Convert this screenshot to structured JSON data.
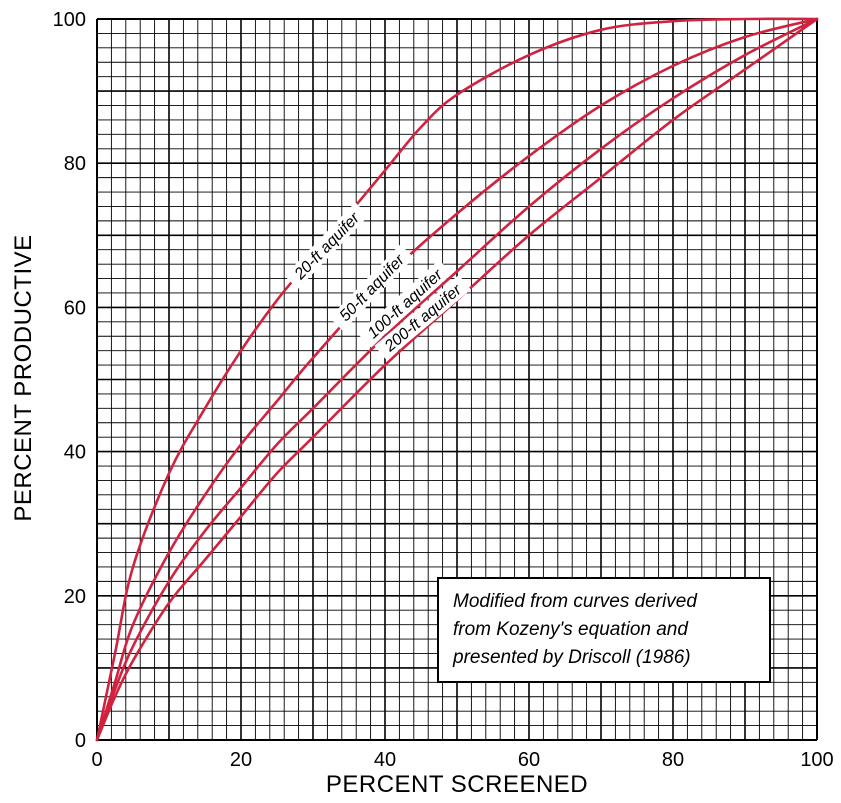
{
  "chart_data": {
    "type": "line",
    "title": "",
    "xlabel": "PERCENT SCREENED",
    "ylabel": "PERCENT PRODUCTIVE",
    "xlim": [
      0,
      100
    ],
    "ylim": [
      0,
      100
    ],
    "x_ticks": [
      "0",
      "20",
      "40",
      "60",
      "80",
      "100"
    ],
    "y_ticks": [
      "0",
      "20",
      "40",
      "60",
      "80",
      "100"
    ],
    "grid": true,
    "colors": {
      "curve": "#d1223f",
      "grid": "#000000"
    },
    "series": [
      {
        "name": "20-ft aquifer",
        "x": [
          0,
          2.5,
          5,
          10,
          15,
          20,
          25,
          30,
          35,
          40,
          45,
          50,
          60,
          70,
          80,
          90,
          100
        ],
        "y": [
          0,
          12,
          24,
          37,
          46,
          54,
          61,
          67,
          73,
          79,
          85,
          89.5,
          95,
          98.5,
          99.7,
          100,
          100
        ]
      },
      {
        "name": "50-ft aquifer",
        "x": [
          0,
          2.5,
          5,
          10,
          15,
          20,
          25,
          30,
          40,
          50,
          60,
          70,
          80,
          90,
          100
        ],
        "y": [
          0,
          8,
          16,
          26,
          34,
          41,
          47,
          53,
          64,
          73,
          81,
          88,
          93.5,
          97.5,
          100
        ]
      },
      {
        "name": "100-ft aquifer",
        "x": [
          0,
          2.5,
          5,
          10,
          15,
          20,
          25,
          30,
          40,
          50,
          60,
          70,
          80,
          90,
          100
        ],
        "y": [
          0,
          7,
          13,
          22,
          29,
          35,
          41,
          46,
          56,
          65,
          74,
          82,
          89,
          95,
          100
        ]
      },
      {
        "name": "200-ft aquifer",
        "x": [
          0,
          2.5,
          5,
          10,
          15,
          20,
          25,
          30,
          40,
          50,
          60,
          70,
          80,
          90,
          100
        ],
        "y": [
          0,
          6,
          11,
          19,
          25,
          31,
          37,
          42,
          52,
          61,
          70,
          78,
          86,
          93,
          100
        ]
      }
    ],
    "annotation": [
      "Modified from curves derived",
      "from Kozeny's equation and",
      "presented by Driscoll (1986)"
    ]
  }
}
